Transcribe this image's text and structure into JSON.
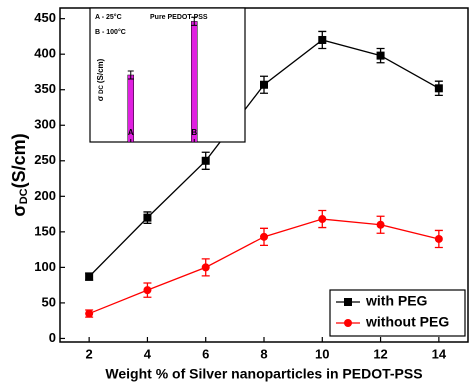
{
  "chart_data": [
    {
      "type": "line",
      "x_label": "Weight % of Silver nanoparticles  in PEDOT-PSS",
      "y_label": [
        "σ",
        "DC",
        "(S/cm)"
      ],
      "x": [
        2,
        4,
        6,
        8,
        10,
        12,
        14
      ],
      "xlim": [
        1,
        15
      ],
      "xticks": [
        2,
        4,
        6,
        8,
        10,
        12,
        14
      ],
      "ylim": [
        -5,
        465
      ],
      "yticks": [
        0,
        50,
        100,
        150,
        200,
        250,
        300,
        350,
        400,
        450
      ],
      "legend": "lower right",
      "series": [
        {
          "name": "with PEG",
          "color": "#000000",
          "marker": "square",
          "values": [
            87,
            170,
            250,
            357,
            420,
            398,
            352
          ],
          "errors": [
            5,
            8,
            12,
            12,
            12,
            10,
            10
          ]
        },
        {
          "name": "without PEG",
          "color": "#ff0000",
          "marker": "circle",
          "values": [
            35,
            68,
            100,
            143,
            168,
            160,
            140
          ],
          "errors": [
            5,
            10,
            12,
            12,
            12,
            12,
            12
          ]
        }
      ]
    },
    {
      "type": "bar",
      "y_label": [
        "σ",
        "DC",
        "(S/cm)"
      ],
      "annotations": [
        "A - 25°C",
        "Pure PEDOT-PSS",
        "B - 100°C"
      ],
      "categories": [
        "A",
        "B"
      ],
      "values": [
        50,
        90
      ],
      "errors": [
        3,
        3
      ],
      "color": "#e020e0",
      "ylim": [
        0,
        100
      ]
    }
  ]
}
